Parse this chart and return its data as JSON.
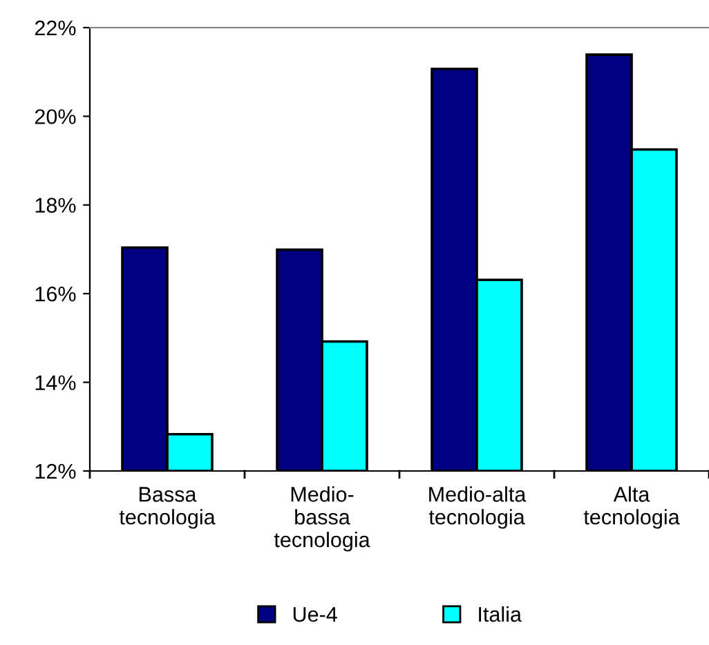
{
  "chart_data": {
    "type": "bar",
    "categories": [
      "Bassa\ntecnologia",
      "Medio-\nbassa\ntecnologia",
      "Medio-alta\ntecnologia",
      "Alta\ntecnologia"
    ],
    "series": [
      {
        "name": "Ue-4",
        "color": "#000080",
        "values": [
          17.04,
          16.99,
          21.07,
          21.39
        ]
      },
      {
        "name": "Italia",
        "color": "#00ffff",
        "values": [
          12.83,
          14.92,
          16.31,
          19.25
        ]
      }
    ],
    "ylim": [
      12,
      22
    ],
    "yticks": [
      {
        "value": 12,
        "label": "12%"
      },
      {
        "value": 14,
        "label": "14%"
      },
      {
        "value": 16,
        "label": "16%"
      },
      {
        "value": 18,
        "label": "18%"
      },
      {
        "value": 20,
        "label": "20%"
      },
      {
        "value": 22,
        "label": "22%"
      }
    ],
    "grid": false,
    "legend": "bottom"
  }
}
